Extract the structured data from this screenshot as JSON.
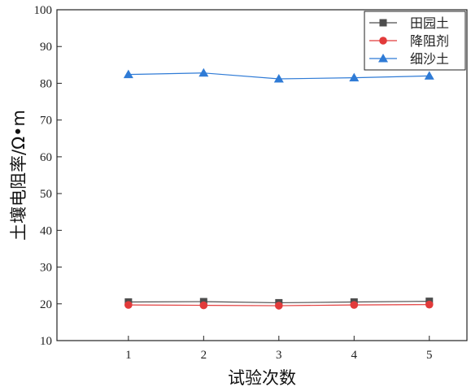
{
  "chart_data": {
    "type": "line",
    "title": "",
    "xlabel": "试验次数",
    "ylabel": "土壤电阻率/Ω•m",
    "x": [
      1,
      2,
      3,
      4,
      5
    ],
    "xlim": [
      0.05,
      5.5
    ],
    "ylim": [
      10,
      100
    ],
    "x_ticks": [
      "1",
      "2",
      "3",
      "4",
      "5"
    ],
    "y_ticks": [
      "10",
      "20",
      "30",
      "40",
      "50",
      "60",
      "70",
      "80",
      "90",
      "100"
    ],
    "grid": false,
    "legend_position": "top-right",
    "series": [
      {
        "name": "田园土",
        "values": [
          20.5,
          20.6,
          20.3,
          20.5,
          20.7
        ],
        "color": "#4d4d4d",
        "marker": "square"
      },
      {
        "name": "降阻剂",
        "values": [
          19.7,
          19.6,
          19.5,
          19.7,
          19.8
        ],
        "color": "#e23a3a",
        "marker": "circle"
      },
      {
        "name": "细沙土",
        "values": [
          82.4,
          82.8,
          81.2,
          81.5,
          82.0
        ],
        "color": "#2f7bd6",
        "marker": "triangle"
      }
    ]
  }
}
